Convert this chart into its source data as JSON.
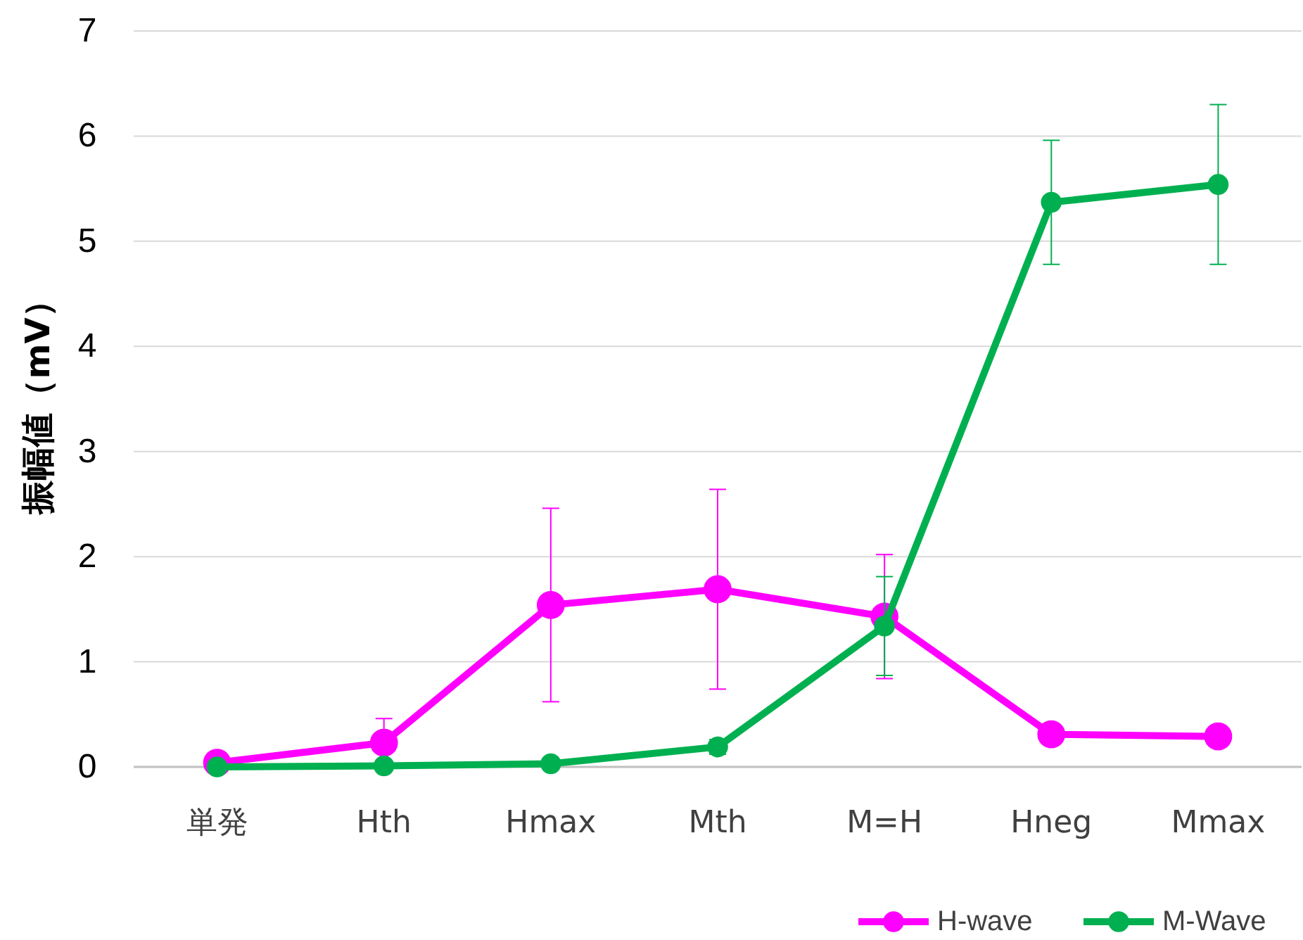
{
  "chart_data": {
    "type": "line",
    "ylabel": "振幅値（mV）",
    "categories": [
      "単発",
      "Hth",
      "Hmax",
      "Mth",
      "M=H",
      "Hneg",
      "Mmax"
    ],
    "series": [
      {
        "name": "H-wave",
        "color": "#ff00ff",
        "values": [
          0.04,
          0.23,
          1.54,
          1.69,
          1.43,
          0.31,
          0.29
        ],
        "errors": [
          0.02,
          0.23,
          0.92,
          0.95,
          0.59,
          0.05,
          0.06
        ]
      },
      {
        "name": "M-Wave",
        "color": "#00b050",
        "values": [
          0.0,
          0.01,
          0.03,
          0.19,
          1.34,
          5.37,
          5.54
        ],
        "errors": [
          0.02,
          0.02,
          0.03,
          0.07,
          0.47,
          0.59,
          0.76
        ]
      }
    ],
    "ylim": [
      0,
      7
    ],
    "yticks": [
      0,
      1,
      2,
      3,
      4,
      5,
      6,
      7
    ],
    "grid": "y",
    "legend": "bottom right",
    "marker": "circle",
    "line_style": "solid"
  }
}
